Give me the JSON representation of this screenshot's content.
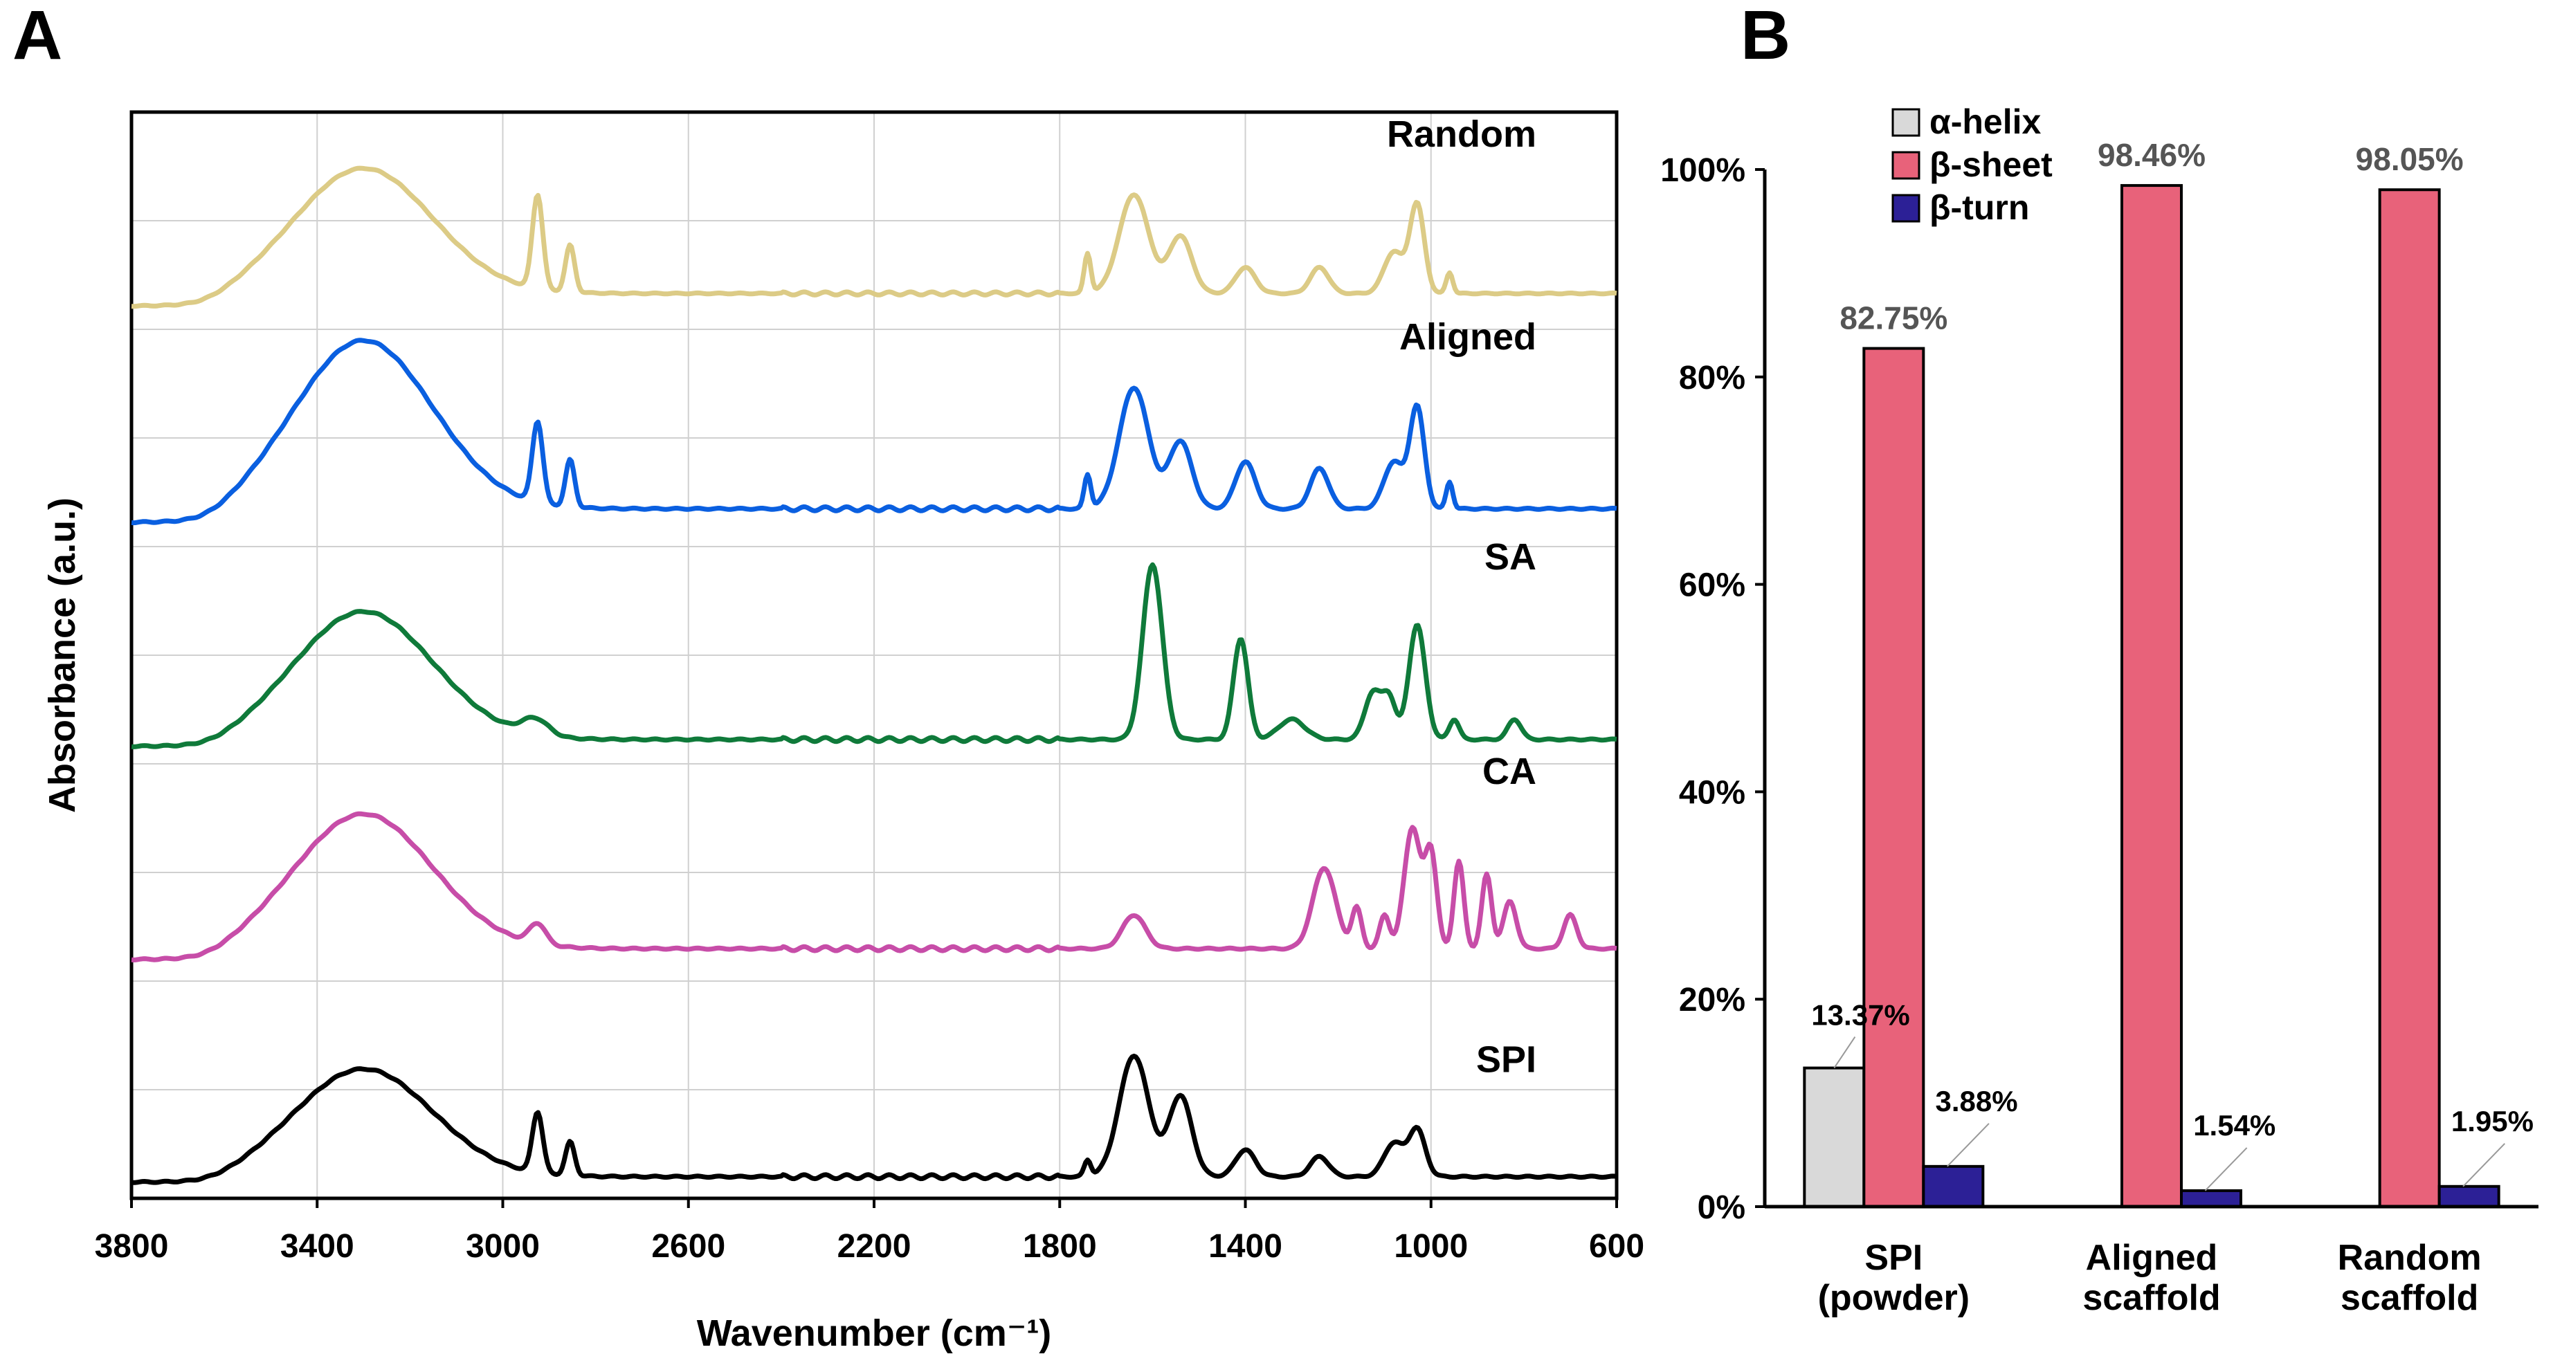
{
  "chart_data": [
    {
      "panel": "A",
      "type": "line",
      "xlabel": "Wavenumber (cm⁻¹)",
      "ylabel": "Absorbance (a.u.)",
      "xlim": [
        3800,
        600
      ],
      "x_ticks": [
        "3800",
        "3400",
        "3000",
        "2600",
        "2200",
        "1800",
        "1400",
        "1000",
        "600"
      ],
      "grid": true,
      "series": [
        {
          "name": "Random",
          "color": "#DCCB86",
          "offset": 4.05,
          "scale": 0.48,
          "features": {
            "base": 0.12,
            "broad": 1.2,
            "peaks": [
              [
                2925,
                0.9,
                16
              ],
              [
                2855,
                0.45,
                14
              ],
              [
                1740,
                0.38,
                10
              ],
              [
                1640,
                0.95,
                45
              ],
              [
                1540,
                0.55,
                35
              ],
              [
                1400,
                0.25,
                30
              ],
              [
                1240,
                0.25,
                28
              ],
              [
                1080,
                0.4,
                30
              ],
              [
                1030,
                0.85,
                22
              ],
              [
                960,
                0.2,
                10
              ]
            ]
          },
          "label": "Random"
        },
        {
          "name": "Aligned",
          "color": "#0A5FE0",
          "offset": 3.05,
          "scale": 0.62,
          "features": {
            "base": 0.1,
            "broad": 1.25,
            "peaks": [
              [
                2925,
                0.6,
                16
              ],
              [
                2855,
                0.35,
                14
              ],
              [
                1740,
                0.25,
                10
              ],
              [
                1640,
                0.9,
                45
              ],
              [
                1540,
                0.5,
                35
              ],
              [
                1400,
                0.35,
                30
              ],
              [
                1240,
                0.3,
                28
              ],
              [
                1080,
                0.35,
                30
              ],
              [
                1030,
                0.75,
                22
              ],
              [
                960,
                0.2,
                10
              ]
            ]
          },
          "label": "Aligned"
        },
        {
          "name": "SA",
          "color": "#0F7A3A",
          "offset": 2.05,
          "scale": 0.62,
          "features": {
            "base": 0.05,
            "broad": 0.95,
            "peaks": [
              [
                2930,
                0.12,
                40
              ],
              [
                1600,
                1.3,
                30
              ],
              [
                1410,
                0.75,
                22
              ],
              [
                1300,
                0.15,
                40
              ],
              [
                1125,
                0.35,
                25
              ],
              [
                1090,
                0.3,
                20
              ],
              [
                1030,
                0.85,
                25
              ],
              [
                950,
                0.15,
                15
              ],
              [
                820,
                0.15,
                20
              ]
            ]
          },
          "label": "SA"
        },
        {
          "name": "CA",
          "color": "#C74DA8",
          "offset": 1.05,
          "scale": 0.62,
          "features": {
            "base": 0.08,
            "broad": 1.0,
            "peaks": [
              [
                2925,
                0.15,
                25
              ],
              [
                1640,
                0.25,
                35
              ],
              [
                1230,
                0.6,
                35
              ],
              [
                1160,
                0.3,
                15
              ],
              [
                1100,
                0.25,
                15
              ],
              [
                1040,
                0.9,
                25
              ],
              [
                1000,
                0.7,
                18
              ],
              [
                940,
                0.65,
                15
              ],
              [
                880,
                0.55,
                15
              ],
              [
                830,
                0.35,
                20
              ],
              [
                700,
                0.25,
                20
              ]
            ]
          },
          "label": "CA"
        },
        {
          "name": "SPI",
          "color": "#000000",
          "offset": 0.05,
          "scale": 0.62,
          "features": {
            "base": 0.04,
            "broad": 0.8,
            "peaks": [
              [
                2925,
                0.45,
                16
              ],
              [
                2855,
                0.25,
                14
              ],
              [
                1740,
                0.12,
                10
              ],
              [
                1640,
                0.9,
                45
              ],
              [
                1540,
                0.6,
                35
              ],
              [
                1400,
                0.2,
                30
              ],
              [
                1240,
                0.15,
                28
              ],
              [
                1080,
                0.25,
                30
              ],
              [
                1030,
                0.35,
                25
              ]
            ]
          },
          "label": "SPI"
        }
      ]
    },
    {
      "panel": "B",
      "type": "bar",
      "categories": [
        "SPI\n(powder)",
        "Aligned\nscaffold",
        "Random\nscaffold"
      ],
      "category_lines": [
        [
          "SPI",
          "(powder)"
        ],
        [
          "Aligned",
          "scaffold"
        ],
        [
          "Random",
          "scaffold"
        ]
      ],
      "ylim": [
        0,
        100
      ],
      "y_ticks": [
        "0%",
        "20%",
        "40%",
        "60%",
        "80%",
        "100%"
      ],
      "series": [
        {
          "name": "α-helix",
          "color": "#D9D9D9",
          "values": [
            13.37,
            0,
            0
          ],
          "labels": [
            "13.37%",
            "",
            ""
          ]
        },
        {
          "name": "β-sheet",
          "color": "#E8627A",
          "values": [
            82.75,
            98.46,
            98.05
          ],
          "labels": [
            "82.75%",
            "98.46%",
            "98.05%"
          ]
        },
        {
          "name": "β-turn",
          "color": "#2C2096",
          "values": [
            3.88,
            1.54,
            1.95
          ],
          "labels": [
            "3.88%",
            "1.54%",
            "1.95%"
          ]
        }
      ],
      "legend": {
        "position": "top-left",
        "entries": [
          "α-helix",
          "β-sheet",
          "β-turn"
        ]
      }
    }
  ],
  "panel_labels": {
    "a": "A",
    "b": "B"
  },
  "ftir": {
    "series_labels": [
      "Random",
      "Aligned",
      "SA",
      "CA",
      "SPI"
    ]
  }
}
